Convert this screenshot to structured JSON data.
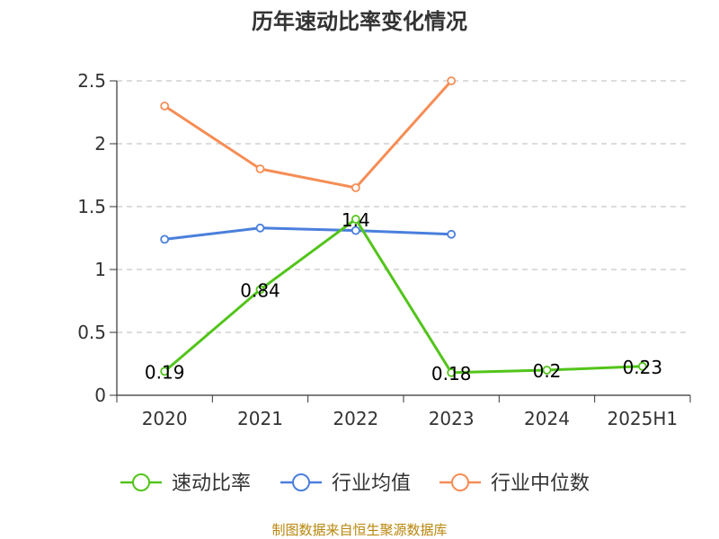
{
  "chart_data": {
    "type": "line",
    "title": "历年速动比率变化情况",
    "categories": [
      "2020",
      "2021",
      "2022",
      "2023",
      "2024",
      "2025H1"
    ],
    "ylim": [
      0,
      2.5
    ],
    "yticks": [
      "0",
      "0.5",
      "1",
      "1.5",
      "2",
      "2.5"
    ],
    "grid": true,
    "legend_position": "bottom",
    "series": [
      {
        "name": "速动比率",
        "color": "#52c41a",
        "values": [
          0.19,
          0.84,
          1.4,
          0.18,
          0.2,
          0.23
        ],
        "labels": [
          "0.19",
          "0.84",
          "1.4",
          "0.18",
          "0.2",
          "0.23"
        ]
      },
      {
        "name": "行业均值",
        "color": "#4a7fdc",
        "values": [
          1.24,
          1.33,
          1.31,
          1.28,
          null,
          null
        ]
      },
      {
        "name": "行业中位数",
        "color": "#f58d55",
        "values": [
          2.3,
          1.8,
          1.65,
          2.5,
          null,
          null
        ]
      }
    ]
  },
  "footer": {
    "source": "制图数据来自恒生聚源数据库"
  }
}
